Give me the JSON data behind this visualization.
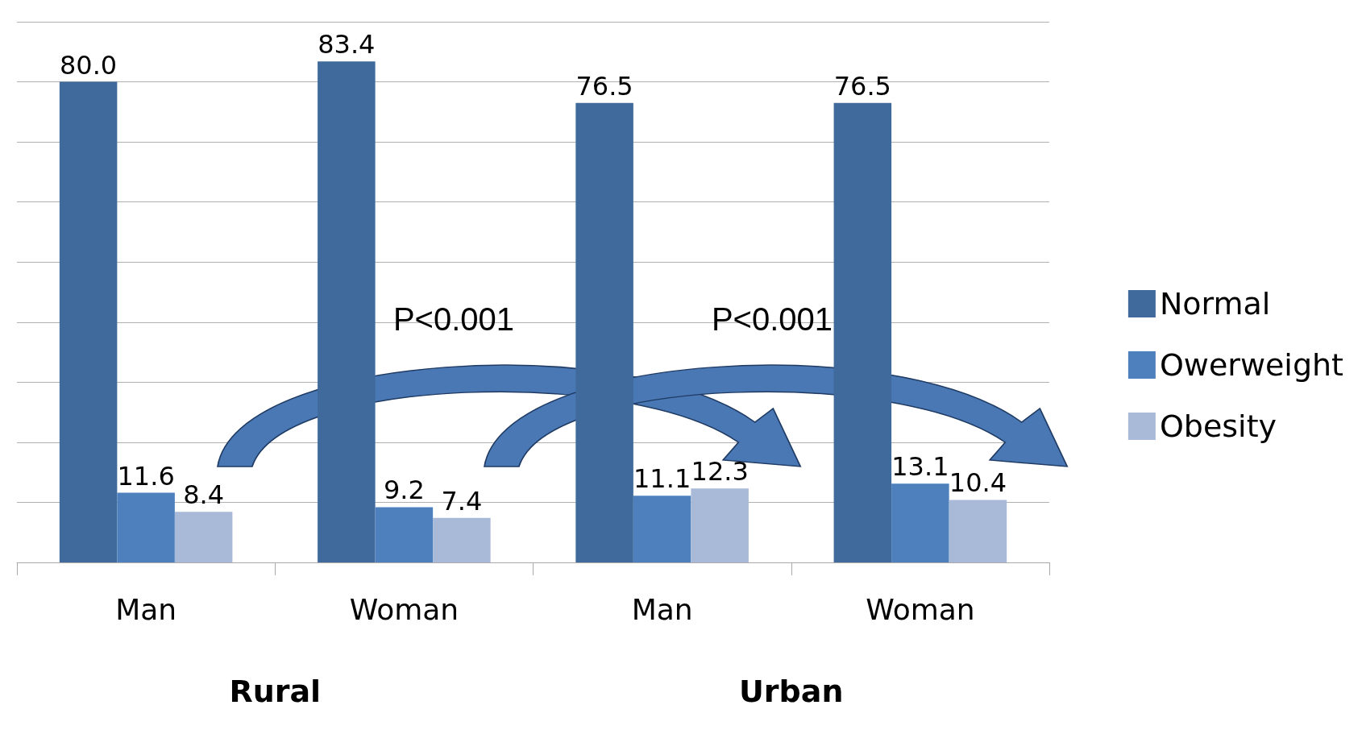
{
  "chart_data": {
    "type": "bar",
    "categories": [
      "Man",
      "Woman",
      "Man",
      "Woman"
    ],
    "series": [
      {
        "name": "Normal",
        "color": "#3f6a9b",
        "values": [
          80,
          83.4,
          76.5,
          76.5
        ],
        "value_labels": [
          "80.0",
          "83.4",
          "76.5",
          "76.5"
        ]
      },
      {
        "name": "Owerweight",
        "color": "#4e80bd",
        "values": [
          11.6,
          9.2,
          11.1,
          13.1
        ],
        "value_labels": [
          "11.6",
          "9.2",
          "11.1",
          "13.1"
        ]
      },
      {
        "name": "Obesity",
        "color": "#a9b9d8",
        "values": [
          8.4,
          7.4,
          12.3,
          10.4
        ],
        "value_labels": [
          "8.4",
          "7.4",
          "12.3",
          "10.4"
        ]
      }
    ],
    "ylim": [
      0,
      90
    ],
    "yticks": [
      {
        "value": 0,
        "label": null
      },
      {
        "value": 10,
        "label": null
      },
      {
        "value": 20,
        "label": null
      },
      {
        "value": 30,
        "label": null
      },
      {
        "value": 40,
        "label": null
      },
      {
        "value": 50,
        "label": null
      },
      {
        "value": 60,
        "label": null
      },
      {
        "value": 70,
        "label": null
      },
      {
        "value": 80,
        "label": null
      },
      {
        "value": 90,
        "label": null
      }
    ],
    "tick_labels": "x",
    "grid": "y",
    "legend": "right",
    "annotations": [
      "Rural",
      "Urban",
      "P<0.001",
      "P<0.001"
    ]
  }
}
